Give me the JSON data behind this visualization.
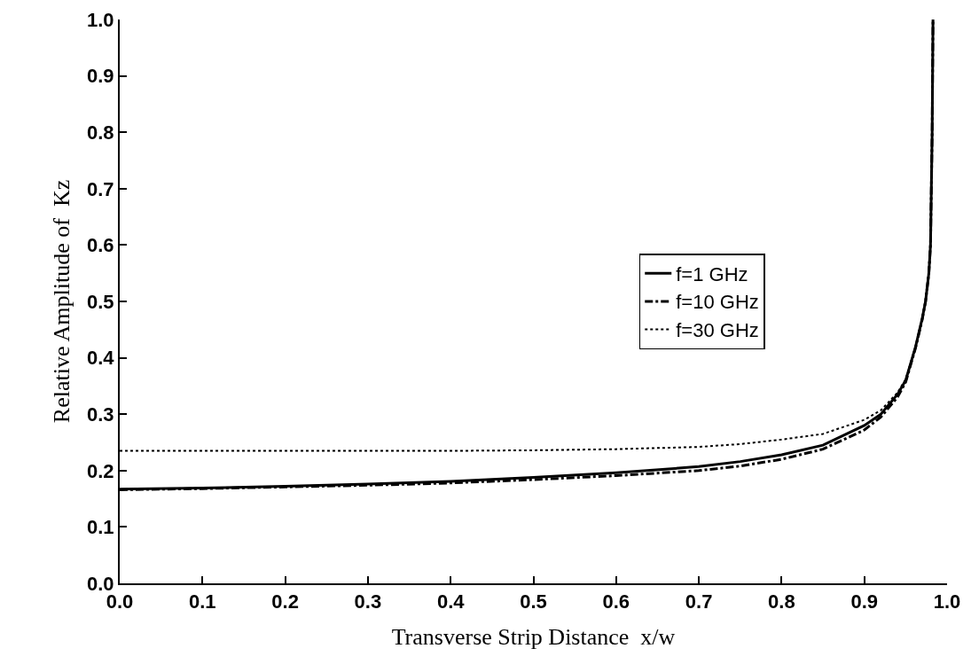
{
  "chart_data": {
    "type": "line",
    "xlabel": "Transverse Strip Distance  x/w",
    "ylabel": "Relative Amplitude of  Kz",
    "xlim": [
      0,
      1
    ],
    "ylim": [
      0,
      1
    ],
    "xticks": [
      {
        "value": 0,
        "label": "0.0"
      },
      0.1,
      0.2,
      0.3,
      0.4,
      0.5,
      0.6,
      0.7,
      0.8,
      0.9,
      {
        "value": 1,
        "label": "1.0"
      }
    ],
    "yticks": [
      {
        "value": 0,
        "label": "0.0"
      },
      0.1,
      0.2,
      0.3,
      0.4,
      0.5,
      0.6,
      0.7,
      0.8,
      0.9,
      {
        "value": 1,
        "label": "1.0"
      }
    ],
    "grid": false,
    "legend": "right",
    "marker": "none",
    "series": [
      {
        "name": "f=1 GHz",
        "color": "#000000",
        "line_style": "solid",
        "x": [
          0,
          0.1,
          0.2,
          0.3,
          0.4,
          0.5,
          0.6,
          0.7,
          0.75,
          0.8,
          0.85,
          0.9,
          0.92,
          0.94,
          0.95,
          0.962,
          0.97,
          0.974,
          0.978,
          0.98,
          0.982,
          0.983
        ],
        "values": [
          0.167,
          0.169,
          0.172,
          0.176,
          0.181,
          0.188,
          0.196,
          0.207,
          0.216,
          0.228,
          0.245,
          0.28,
          0.3,
          0.335,
          0.36,
          0.42,
          0.47,
          0.5,
          0.55,
          0.6,
          0.8,
          1.0
        ]
      },
      {
        "name": "f=10 GHz",
        "color": "#000000",
        "line_style": "dashdot",
        "x": [
          0,
          0.1,
          0.2,
          0.3,
          0.4,
          0.5,
          0.6,
          0.7,
          0.75,
          0.8,
          0.85,
          0.9,
          0.92,
          0.94,
          0.95,
          0.962,
          0.97,
          0.974,
          0.978,
          0.98,
          0.982,
          0.983
        ],
        "values": [
          0.166,
          0.168,
          0.171,
          0.174,
          0.178,
          0.184,
          0.191,
          0.2,
          0.208,
          0.22,
          0.238,
          0.272,
          0.295,
          0.33,
          0.357,
          0.418,
          0.468,
          0.5,
          0.55,
          0.6,
          0.8,
          1.0
        ]
      },
      {
        "name": "f=30 GHz",
        "color": "#000000",
        "line_style": "dotted",
        "x": [
          0,
          0.1,
          0.2,
          0.3,
          0.4,
          0.5,
          0.6,
          0.7,
          0.75,
          0.8,
          0.85,
          0.9,
          0.92,
          0.94,
          0.95,
          0.962,
          0.97,
          0.974,
          0.978,
          0.98,
          0.982,
          0.983
        ],
        "values": [
          0.235,
          0.235,
          0.235,
          0.235,
          0.235,
          0.236,
          0.238,
          0.242,
          0.247,
          0.255,
          0.265,
          0.29,
          0.307,
          0.338,
          0.362,
          0.42,
          0.47,
          0.5,
          0.55,
          0.6,
          0.8,
          1.0
        ]
      }
    ]
  }
}
